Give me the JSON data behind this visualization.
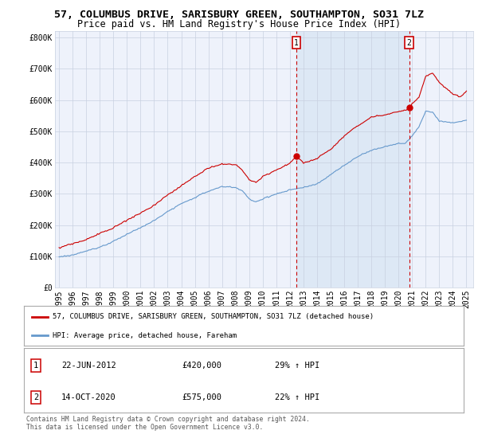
{
  "title": "57, COLUMBUS DRIVE, SARISBURY GREEN, SOUTHAMPTON, SO31 7LZ",
  "subtitle": "Price paid vs. HM Land Registry's House Price Index (HPI)",
  "legend_property": "57, COLUMBUS DRIVE, SARISBURY GREEN, SOUTHAMPTON, SO31 7LZ (detached house)",
  "legend_hpi": "HPI: Average price, detached house, Fareham",
  "footer": "Contains HM Land Registry data © Crown copyright and database right 2024.\nThis data is licensed under the Open Government Licence v3.0.",
  "sale1_label": "1",
  "sale1_date": "22-JUN-2012",
  "sale1_price": "£420,000",
  "sale1_hpi": "29% ↑ HPI",
  "sale1_year": 2012.47,
  "sale1_value": 420000,
  "sale2_label": "2",
  "sale2_date": "14-OCT-2020",
  "sale2_price": "£575,000",
  "sale2_hpi": "22% ↑ HPI",
  "sale2_year": 2020.79,
  "sale2_value": 575000,
  "ylim": [
    0,
    820000
  ],
  "xlim_start": 1994.7,
  "xlim_end": 2025.5,
  "yticks": [
    0,
    100000,
    200000,
    300000,
    400000,
    500000,
    600000,
    700000,
    800000
  ],
  "ytick_labels": [
    "£0",
    "£100K",
    "£200K",
    "£300K",
    "£400K",
    "£500K",
    "£600K",
    "£700K",
    "£800K"
  ],
  "xticks": [
    1995,
    1996,
    1997,
    1998,
    1999,
    2000,
    2001,
    2002,
    2003,
    2004,
    2005,
    2006,
    2007,
    2008,
    2009,
    2010,
    2011,
    2012,
    2013,
    2014,
    2015,
    2016,
    2017,
    2018,
    2019,
    2020,
    2021,
    2022,
    2023,
    2024,
    2025
  ],
  "property_color": "#cc0000",
  "hpi_color": "#6699cc",
  "vline_color": "#cc0000",
  "shade_color": "#dde8f5",
  "background_plot": "#eef2fb",
  "background_fig": "#ffffff",
  "grid_color": "#c8d0e0",
  "title_fontsize": 9.5,
  "subtitle_fontsize": 8.5,
  "axis_fontsize": 7.0,
  "legend_fontsize": 7.5
}
